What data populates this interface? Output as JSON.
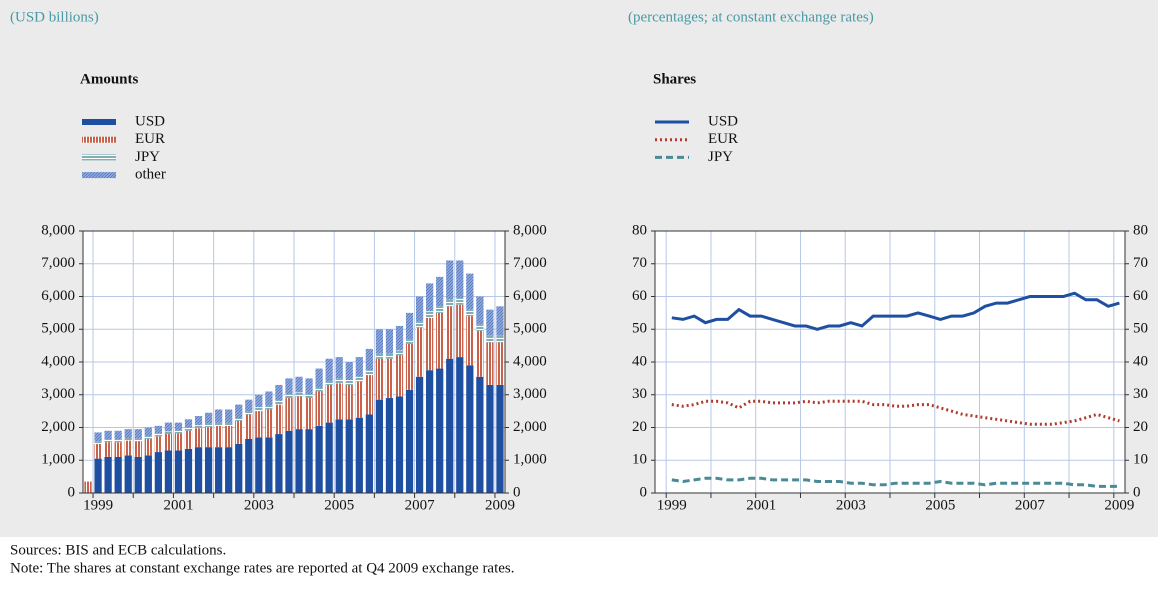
{
  "chart_data": [
    {
      "type": "bar",
      "stacked": true,
      "subtitle": "(USD billions)",
      "title": "Amounts",
      "categories": [
        null,
        "1999",
        null,
        null,
        null,
        null,
        null,
        null,
        null,
        "2001",
        null,
        null,
        null,
        null,
        null,
        null,
        null,
        "2003",
        null,
        null,
        null,
        null,
        null,
        null,
        null,
        "2005",
        null,
        null,
        null,
        null,
        null,
        null,
        null,
        "2007",
        null,
        null,
        null,
        null,
        null,
        null,
        null,
        "2009"
      ],
      "series": [
        {
          "name": "USD",
          "color": "#1f4fa0",
          "pattern": "solid",
          "values": [
            0,
            1050,
            1100,
            1100,
            1150,
            1100,
            1150,
            1250,
            1300,
            1300,
            1350,
            1400,
            1400,
            1400,
            1400,
            1500,
            1650,
            1700,
            1700,
            1800,
            1900,
            1950,
            1950,
            2050,
            2150,
            2250,
            2250,
            2300,
            2400,
            2850,
            2900,
            2950,
            3150,
            3550,
            3750,
            3800,
            4100,
            4150,
            3900,
            3550,
            3300,
            3300
          ]
        },
        {
          "name": "EUR",
          "color": "#c8624a",
          "pattern": "vertical",
          "values": [
            350,
            450,
            450,
            450,
            450,
            480,
            500,
            480,
            500,
            520,
            550,
            580,
            620,
            650,
            650,
            700,
            750,
            800,
            850,
            900,
            1000,
            1000,
            950,
            1050,
            1150,
            1100,
            1050,
            1100,
            1200,
            1250,
            1200,
            1250,
            1400,
            1500,
            1600,
            1700,
            1600,
            1600,
            1500,
            1400,
            1300,
            1300
          ]
        },
        {
          "name": "JPY",
          "color": "#7fb0b8",
          "pattern": "horizontal",
          "values": [
            0,
            80,
            80,
            80,
            80,
            80,
            80,
            80,
            80,
            90,
            90,
            90,
            90,
            90,
            90,
            90,
            90,
            120,
            120,
            120,
            120,
            120,
            120,
            120,
            120,
            150,
            150,
            150,
            150,
            150,
            150,
            150,
            150,
            200,
            200,
            200,
            200,
            200,
            200,
            200,
            200,
            200
          ]
        },
        {
          "name": "other",
          "color": "#5b7fc8",
          "pattern": "diagonal",
          "values": [
            0,
            270,
            270,
            270,
            270,
            290,
            270,
            240,
            270,
            240,
            260,
            280,
            340,
            410,
            410,
            410,
            360,
            380,
            430,
            480,
            480,
            480,
            480,
            580,
            680,
            650,
            550,
            600,
            650,
            750,
            750,
            750,
            800,
            750,
            850,
            900,
            1200,
            1150,
            1100,
            850,
            800,
            900
          ]
        }
      ],
      "ylim": [
        0,
        8000
      ],
      "yticks": [
        0,
        {
          "value": 1000,
          "label": "1,000"
        },
        {
          "value": 2000,
          "label": "2,000"
        },
        {
          "value": 3000,
          "label": "3,000"
        },
        {
          "value": 4000,
          "label": "4,000"
        },
        {
          "value": 5000,
          "label": "5,000"
        },
        {
          "value": 6000,
          "label": "6,000"
        },
        {
          "value": 7000,
          "label": "7,000"
        },
        {
          "value": 8000,
          "label": "8,000"
        }
      ],
      "y2lim": [
        0,
        8000
      ],
      "y2ticks": [
        0,
        {
          "value": 1000,
          "label": "1,000"
        },
        {
          "value": 2000,
          "label": "2,000"
        },
        {
          "value": 3000,
          "label": "3,000"
        },
        {
          "value": 4000,
          "label": "4,000"
        },
        {
          "value": 5000,
          "label": "5,000"
        },
        {
          "value": 6000,
          "label": "6,000"
        },
        {
          "value": 7000,
          "label": "7,000"
        },
        {
          "value": 8000,
          "label": "8,000"
        }
      ],
      "grid": true,
      "legend": "upper left"
    },
    {
      "type": "line",
      "subtitle": "(percentages; at constant exchange rates)",
      "title": "Shares",
      "categories": [
        null,
        "1999",
        null,
        null,
        null,
        null,
        null,
        null,
        null,
        "2001",
        null,
        null,
        null,
        null,
        null,
        null,
        null,
        "2003",
        null,
        null,
        null,
        null,
        null,
        null,
        null,
        "2005",
        null,
        null,
        null,
        null,
        null,
        null,
        null,
        "2007",
        null,
        null,
        null,
        null,
        null,
        null,
        null,
        "2009"
      ],
      "series": [
        {
          "name": "USD",
          "color": "#1f4fa0",
          "dash": "solid",
          "values": [
            null,
            53.5,
            53,
            54,
            52,
            53,
            53,
            56,
            54,
            54,
            53,
            52,
            51,
            51,
            50,
            51,
            51,
            52,
            51,
            54,
            54,
            54,
            54,
            55,
            54,
            53,
            54,
            54,
            55,
            57,
            58,
            58,
            59,
            60,
            60,
            60,
            60,
            61,
            59,
            59,
            57,
            58
          ]
        },
        {
          "name": "EUR",
          "color": "#b03a2e",
          "dash": "dotted",
          "values": [
            null,
            27,
            26.5,
            27,
            28,
            28,
            27.5,
            26,
            28,
            28,
            27.5,
            27.5,
            27.5,
            28,
            27.5,
            28,
            28,
            28,
            28,
            27,
            27,
            26.5,
            26.5,
            27,
            27,
            26,
            25,
            24,
            23.5,
            23,
            22.5,
            22,
            21.5,
            21,
            21,
            21,
            21.5,
            22,
            23,
            24,
            23,
            22
          ]
        },
        {
          "name": "JPY",
          "color": "#4a8a96",
          "dash": "dashed",
          "values": [
            null,
            4,
            3.5,
            4,
            4.5,
            4.5,
            4,
            4,
            4.5,
            4.5,
            4,
            4,
            4,
            4,
            3.5,
            3.5,
            3.5,
            3,
            3,
            2.5,
            2.5,
            3,
            3,
            3,
            3,
            3.5,
            3,
            3,
            3,
            2.5,
            3,
            3,
            3,
            3,
            3,
            3,
            3,
            2.5,
            2.5,
            2,
            2,
            2
          ]
        }
      ],
      "ylim": [
        0,
        80
      ],
      "yticks": [
        0,
        10,
        20,
        30,
        40,
        50,
        60,
        70,
        80
      ],
      "y2lim": [
        0,
        80
      ],
      "y2ticks": [
        0,
        10,
        20,
        30,
        40,
        50,
        60,
        70,
        80
      ],
      "grid": true,
      "legend": "upper left"
    }
  ],
  "footer": {
    "sources": "Sources: BIS and ECB calculations.",
    "note": "Note: The shares at constant exchange rates are reported at Q4 2009 exchange rates."
  }
}
